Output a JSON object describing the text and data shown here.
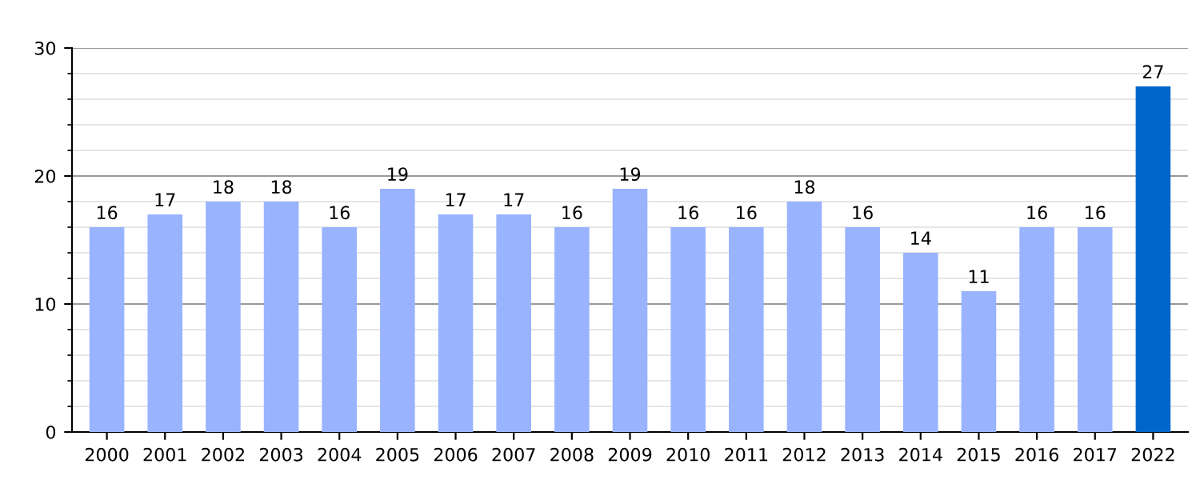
{
  "chart_data": {
    "type": "bar",
    "categories": [
      "2000",
      "2001",
      "2002",
      "2003",
      "2004",
      "2005",
      "2006",
      "2007",
      "2008",
      "2009",
      "2010",
      "2011",
      "2012",
      "2013",
      "2014",
      "2015",
      "2016",
      "2017",
      "2022"
    ],
    "values": [
      16,
      17,
      18,
      18,
      16,
      19,
      17,
      17,
      16,
      19,
      16,
      16,
      18,
      16,
      14,
      11,
      16,
      16,
      27
    ],
    "colors": [
      "#99b3ff",
      "#99b3ff",
      "#99b3ff",
      "#99b3ff",
      "#99b3ff",
      "#99b3ff",
      "#99b3ff",
      "#99b3ff",
      "#99b3ff",
      "#99b3ff",
      "#99b3ff",
      "#99b3ff",
      "#99b3ff",
      "#99b3ff",
      "#99b3ff",
      "#99b3ff",
      "#99b3ff",
      "#99b3ff",
      "#0066cc"
    ],
    "ylim": [
      0,
      30
    ],
    "yticks": [
      0,
      {
        "value": 2,
        "label": null
      },
      {
        "value": 4,
        "label": null
      },
      {
        "value": 6,
        "label": null
      },
      {
        "value": 8,
        "label": null
      },
      10,
      {
        "value": 12,
        "label": null
      },
      {
        "value": 14,
        "label": null
      },
      {
        "value": 16,
        "label": null
      },
      {
        "value": 18,
        "label": null
      },
      20,
      {
        "value": 22,
        "label": null
      },
      {
        "value": 24,
        "label": null
      },
      {
        "value": 26,
        "label": null
      },
      {
        "value": 28,
        "label": null
      },
      30
    ],
    "grid": "y",
    "data_labels": true
  }
}
